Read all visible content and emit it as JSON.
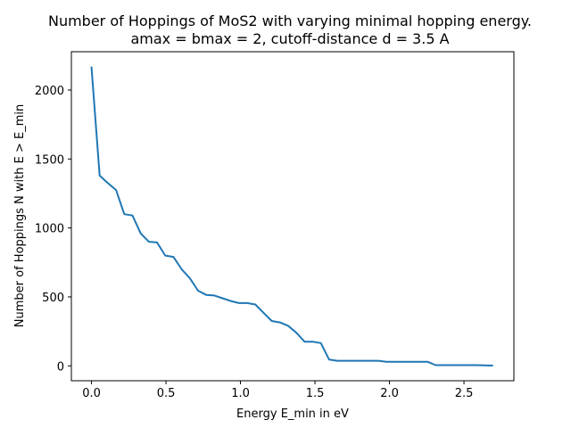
{
  "chart_data": {
    "type": "line",
    "title": [
      "Number of Hoppings of MoS2 with varying minimal hopping energy.",
      "amax = bmax = 2, cutoff-distance d = 3.5 A"
    ],
    "xlabel": "Energy E_min in eV",
    "ylabel": "Number of Hoppings N with E > E_min",
    "xlim": [
      -0.135,
      2.835
    ],
    "ylim": [
      -108,
      2278
    ],
    "xticks": [
      0.0,
      0.5,
      1.0,
      1.5,
      2.0,
      2.5
    ],
    "xtick_labels": [
      "0.0",
      "0.5",
      "1.0",
      "1.5",
      "2.0",
      "2.5"
    ],
    "yticks": [
      0,
      500,
      1000,
      1500,
      2000
    ],
    "ytick_labels": [
      "0",
      "500",
      "1000",
      "1500",
      "2000"
    ],
    "grid": false,
    "series": [
      {
        "color": "#1f77b4",
        "x": [
          0.0,
          0.055,
          0.11,
          0.165,
          0.22,
          0.275,
          0.33,
          0.385,
          0.44,
          0.495,
          0.55,
          0.605,
          0.66,
          0.715,
          0.77,
          0.825,
          0.88,
          0.935,
          0.99,
          1.045,
          1.1,
          1.155,
          1.21,
          1.265,
          1.32,
          1.375,
          1.43,
          1.485,
          1.54,
          1.595,
          1.65,
          1.705,
          1.76,
          1.815,
          1.87,
          1.925,
          1.98,
          2.035,
          2.09,
          2.145,
          2.2,
          2.255,
          2.31,
          2.365,
          2.42,
          2.475,
          2.53,
          2.585,
          2.64,
          2.695
        ],
        "y": [
          2170,
          1380,
          1325,
          1275,
          1100,
          1090,
          960,
          900,
          895,
          800,
          790,
          700,
          635,
          545,
          515,
          510,
          490,
          470,
          455,
          455,
          445,
          385,
          325,
          315,
          290,
          240,
          175,
          175,
          165,
          45,
          37,
          37,
          37,
          37,
          37,
          37,
          30,
          30,
          30,
          30,
          30,
          30,
          5,
          5,
          5,
          5,
          5,
          5,
          3,
          2
        ]
      }
    ]
  }
}
